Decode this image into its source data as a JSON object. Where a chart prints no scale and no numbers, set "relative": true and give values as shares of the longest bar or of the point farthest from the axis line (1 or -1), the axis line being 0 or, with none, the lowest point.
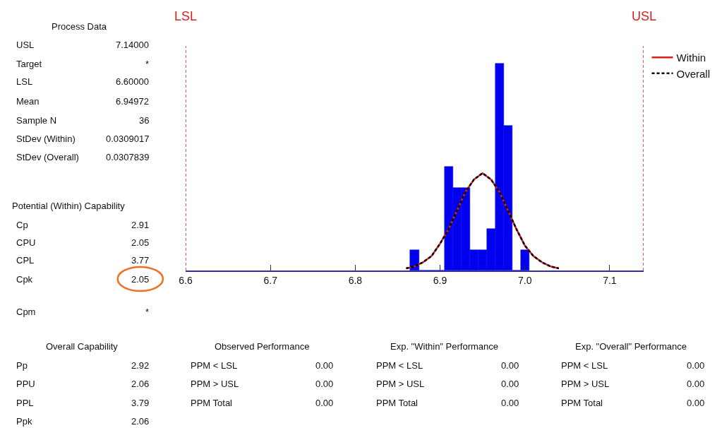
{
  "chart_data": {
    "type": "histogram",
    "relative": true,
    "bins": [
      6.865,
      6.875,
      6.885,
      6.895,
      6.905,
      6.915,
      6.925,
      6.935,
      6.945,
      6.955,
      6.965,
      6.975,
      6.985,
      6.995,
      7.005
    ],
    "values": [
      0.1,
      0,
      0,
      0,
      0.5,
      0.4,
      0.4,
      0.1,
      0.1,
      0.2,
      1,
      0.7,
      0,
      0.1
    ],
    "color": "#0000ee",
    "series": [
      {
        "name": "Within",
        "type": "line",
        "color": "#d62020",
        "line_style": "solid",
        "x": [
          6.86,
          6.87,
          6.88,
          6.89,
          6.9,
          6.91,
          6.92,
          6.93,
          6.94,
          6.95,
          6.96,
          6.97,
          6.98,
          6.99,
          7.0,
          7.01,
          7.02,
          7.03,
          7.04
        ],
        "values": [
          0.01,
          0.02,
          0.04,
          0.07,
          0.13,
          0.2,
          0.29,
          0.38,
          0.44,
          0.47,
          0.44,
          0.38,
          0.29,
          0.2,
          0.12,
          0.07,
          0.04,
          0.02,
          0.01
        ]
      },
      {
        "name": "Overall",
        "type": "line",
        "color": "#000000",
        "line_style": "dashed",
        "x": [
          6.86,
          6.87,
          6.88,
          6.89,
          6.9,
          6.91,
          6.92,
          6.93,
          6.94,
          6.95,
          6.96,
          6.97,
          6.98,
          6.99,
          7.0,
          7.01,
          7.02,
          7.03,
          7.04
        ],
        "values": [
          0.01,
          0.02,
          0.04,
          0.07,
          0.13,
          0.2,
          0.29,
          0.38,
          0.44,
          0.47,
          0.44,
          0.38,
          0.29,
          0.2,
          0.12,
          0.07,
          0.04,
          0.02,
          0.01
        ]
      }
    ],
    "xlim": [
      6.6,
      7.14
    ],
    "xticks": [
      6.6,
      6.7,
      6.8,
      6.9,
      {
        "value": 7.0,
        "label": "7.0"
      },
      7.1
    ],
    "ref_lines": [
      {
        "axis": "x",
        "value": 6.6,
        "label": "LSL",
        "color": "#d62020",
        "line_style": "dashed"
      },
      {
        "axis": "x",
        "value": 7.14,
        "label": "USL",
        "color": "#d62020",
        "line_style": "dashed"
      }
    ],
    "legend": "top right",
    "annotations": [
      "Process Data",
      "USL",
      "7.14000",
      "Target",
      "*",
      "LSL",
      "6.60000",
      "Mean",
      "6.94972",
      "Sample N",
      "36",
      "StDev (Within)",
      "0.0309017",
      "StDev (Overall)",
      "0.0307839",
      "Potential (Within) Capability",
      "Cp",
      "2.91",
      "CPU",
      "2.05",
      "CPL",
      "3.77",
      "Cpk",
      "2.05",
      "Cpm",
      "*",
      "Overall Capability",
      "Pp",
      "2.92",
      "PPU",
      "2.06",
      "PPL",
      "3.79",
      "Ppk",
      "2.06",
      "Observed Performance",
      "PPM < LSL",
      "0.00",
      "PPM > USL",
      "0.00",
      "PPM Total",
      "0.00",
      "Exp. \"Within\" Performance",
      "PPM < LSL",
      "0.00",
      "PPM > USL",
      "0.00",
      "PPM Total",
      "0.00",
      "Exp. \"Overall\" Performance",
      "PPM < LSL",
      "0.00",
      "PPM > USL",
      "0.00",
      "PPM Total",
      "0.00"
    ]
  }
}
